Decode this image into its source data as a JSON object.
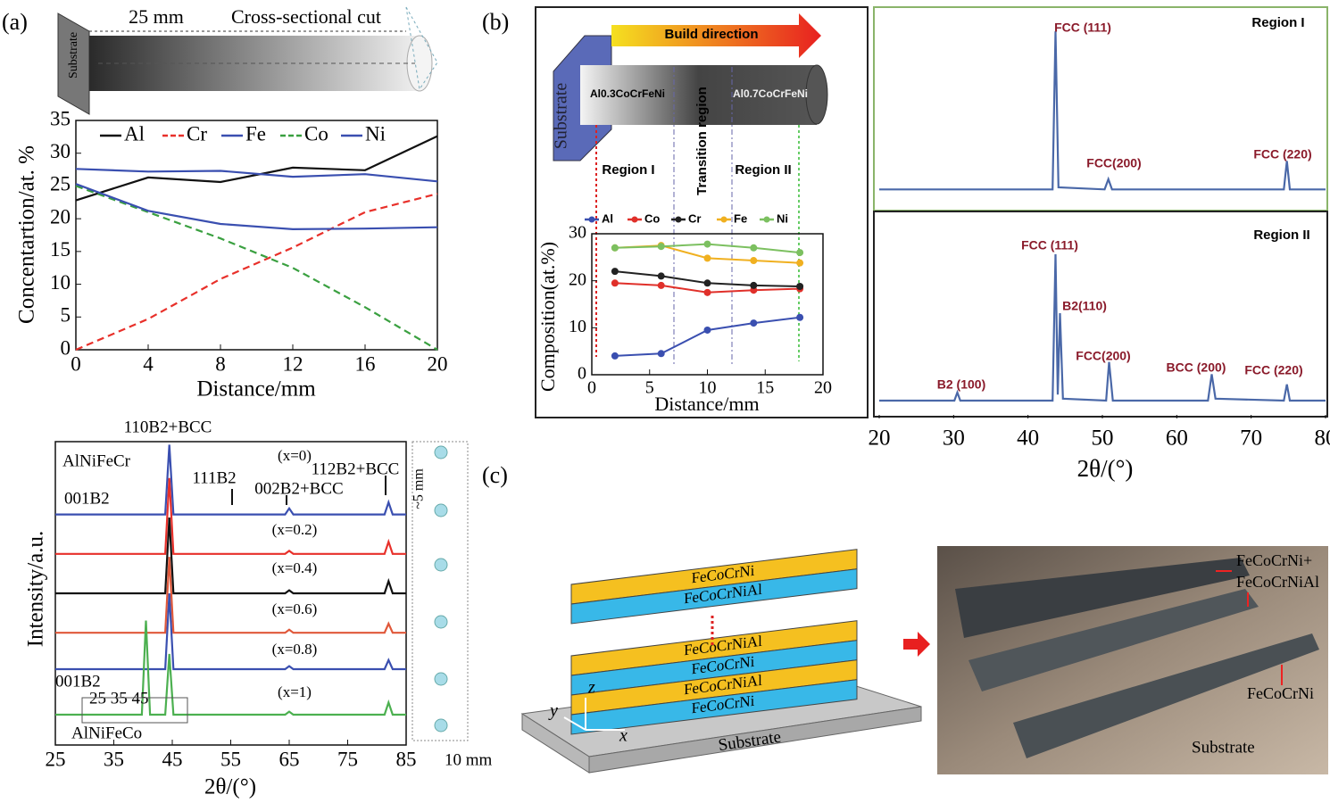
{
  "panel_labels": [
    "(a)",
    "(b)",
    "(c)"
  ],
  "schematic_a": {
    "length": "25 mm",
    "cut": "Cross-sectional cut",
    "substrate": "Substrate"
  },
  "schematic_b": {
    "build_direction": "Build direction",
    "substrate": "Substrate",
    "alloy_1": "Al0.3CoCrFeNi",
    "alloy_2": "Al0.7CoCrFeNi",
    "transition": "Transition region",
    "region_1": "Region I",
    "region_2": "Region II"
  },
  "diagram_c": {
    "layers_top": [
      "FeCoCrNi",
      "FeCoCrNiAl"
    ],
    "layers_bottom": [
      "FeCoCrNiAl",
      "FeCoCrNi",
      "FeCoCrNiAl",
      "FeCoCrNi"
    ],
    "axes": [
      "y",
      "z",
      "x"
    ],
    "substrate": "Substrate"
  },
  "photo_c": {
    "label_top": [
      "FeCoCrNi+",
      "FeCoCrNiAl"
    ],
    "label_mid": "FeCoCrNi",
    "substrate": "Substrate"
  },
  "chart_data": [
    {
      "type": "line",
      "x_label": "Distance/mm",
      "y_label": "Concentartion/at. %",
      "x": [
        0,
        4,
        8,
        12,
        16,
        20
      ],
      "xlim": [
        0,
        20
      ],
      "xticks": [
        0,
        4,
        8,
        12,
        16,
        20
      ],
      "ylim": [
        0,
        35
      ],
      "yticks": [
        0,
        5,
        10,
        15,
        20,
        25,
        30,
        35
      ],
      "series": [
        {
          "name": "Al",
          "color": "#111111",
          "dash": false,
          "values": [
            22.8,
            26.3,
            25.6,
            27.8,
            27.4,
            32.6
          ]
        },
        {
          "name": "Cr",
          "color": "#e8302a",
          "dash": true,
          "values": [
            0,
            4.7,
            10.8,
            15.6,
            21,
            23.8
          ]
        },
        {
          "name": "Fe",
          "color": "#3a4fb0",
          "dash": false,
          "values": [
            27.6,
            27.2,
            27.3,
            26.4,
            26.8,
            25.7
          ]
        },
        {
          "name": "Co",
          "color": "#3aa040",
          "dash": true,
          "values": [
            25,
            21,
            17,
            12.5,
            6.5,
            0
          ]
        },
        {
          "name": "Ni",
          "color": "#3a4fb0",
          "dash": false,
          "values": [
            25.3,
            21.2,
            19.2,
            18.4,
            18.5,
            18.7
          ]
        }
      ]
    },
    {
      "type": "line",
      "x_label": "2θ/(°)",
      "y_label": "Intensity/a.u.",
      "xlim": [
        25,
        85
      ],
      "xticks": [
        25,
        35,
        45,
        55,
        65,
        75,
        85
      ],
      "ylim": [
        0,
        100
      ],
      "annotations": [
        "110B2+BCC",
        "AlNiFeCr",
        "001B2",
        "111B2",
        "002B2+BCC",
        "112B2+BCC",
        "001B2",
        "25 35 45",
        "AlNiFeCo",
        "~5 mm",
        "10 mm"
      ],
      "series": [
        {
          "name": "(x=0)",
          "color": "#3a4fb0",
          "x": [
            25,
            43.8,
            44.5,
            45.2,
            64.3,
            65,
            65.7,
            81.3,
            82,
            82.7,
            85
          ],
          "values": [
            76,
            76,
            99,
            76,
            76,
            78,
            76,
            76,
            80,
            76,
            76
          ]
        },
        {
          "name": "(x=0.2)",
          "color": "#e8302a",
          "x": [
            25,
            43.8,
            44.5,
            45.2,
            64.3,
            65,
            65.7,
            81.3,
            82,
            82.7,
            85
          ],
          "values": [
            63,
            63,
            88,
            63,
            63,
            64,
            63,
            63,
            67,
            63,
            63
          ]
        },
        {
          "name": "(x=0.4)",
          "color": "#111111",
          "x": [
            25,
            43.8,
            44.5,
            45.2,
            64.3,
            65,
            65.7,
            81.3,
            82,
            82.7,
            85
          ],
          "values": [
            50,
            50,
            75,
            50,
            50,
            51,
            50,
            50,
            54,
            50,
            50
          ]
        },
        {
          "name": "(x=0.6)",
          "color": "#e0583a",
          "x": [
            25,
            43.8,
            44.5,
            45.2,
            64.3,
            65,
            65.7,
            81.3,
            82,
            82.7,
            85
          ],
          "values": [
            37,
            37,
            62,
            37,
            37,
            38,
            37,
            37,
            40,
            37,
            37
          ]
        },
        {
          "name": "(x=0.8)",
          "color": "#3a4fb0",
          "x": [
            25,
            43.8,
            44.5,
            45.2,
            64.3,
            65,
            65.7,
            81.3,
            82,
            82.7,
            85
          ],
          "values": [
            25,
            25,
            50,
            25,
            25,
            26,
            25,
            25,
            28,
            25,
            25
          ]
        },
        {
          "name": "(x=1)",
          "color": "#4cb050",
          "x": [
            25,
            39.8,
            40.5,
            41.2,
            43.8,
            44.5,
            45.2,
            64.3,
            65,
            65.7,
            81.3,
            82,
            82.7,
            85
          ],
          "values": [
            10,
            10,
            41,
            10,
            10,
            30,
            10,
            10,
            11,
            10,
            10,
            14,
            10,
            10
          ]
        }
      ]
    },
    {
      "type": "line",
      "x_label": "Distance/mm",
      "y_label": "Composition(at.%)",
      "markers": true,
      "x": [
        2,
        6,
        10,
        14,
        18
      ],
      "xlim": [
        0,
        20
      ],
      "xticks": [
        0,
        5,
        10,
        15,
        20
      ],
      "ylim": [
        0,
        30
      ],
      "yticks": [
        0,
        10,
        20,
        30
      ],
      "series": [
        {
          "name": "Al",
          "color": "#3a4fb0",
          "values": [
            4,
            4.5,
            9.5,
            11,
            12.2
          ]
        },
        {
          "name": "Co",
          "color": "#e0302a",
          "values": [
            19.5,
            19,
            17.5,
            18,
            18.3
          ]
        },
        {
          "name": "Cr",
          "color": "#222222",
          "values": [
            22,
            21,
            19.5,
            19,
            18.8
          ]
        },
        {
          "name": "Fe",
          "color": "#f0b020",
          "values": [
            27,
            27.5,
            24.8,
            24.3,
            23.8
          ]
        },
        {
          "name": "Ni",
          "color": "#7cc060",
          "values": [
            27,
            27.3,
            27.8,
            27,
            26
          ]
        }
      ]
    },
    {
      "type": "line",
      "title": "Region I",
      "xlim": [
        20,
        80
      ],
      "ylim": [
        0,
        100
      ],
      "annotations": [
        "FCC (111)",
        "FCC(200)",
        "FCC (220)"
      ],
      "series": [
        {
          "color": "#4a68a8",
          "x": [
            20,
            43.3,
            43.7,
            44.1,
            50.3,
            50.8,
            51.3,
            74.4,
            74.8,
            75.2,
            80
          ],
          "values": [
            10,
            10,
            88,
            11,
            10,
            15,
            10,
            10,
            24,
            10,
            10
          ]
        }
      ]
    },
    {
      "type": "line",
      "title": "Region II",
      "x_label": "2θ/(°)",
      "xlim": [
        20,
        80
      ],
      "xticks": [
        20,
        30,
        40,
        50,
        60,
        70,
        80
      ],
      "ylim": [
        0,
        100
      ],
      "annotations": [
        "FCC (111)",
        "B2(110)",
        "FCC(200)",
        "BCC (200)",
        "FCC (220)",
        "B2 (100)"
      ],
      "series": [
        {
          "color": "#4a68a8",
          "x": [
            20,
            30.1,
            30.5,
            30.9,
            43.3,
            43.7,
            44.0,
            44.3,
            44.7,
            50.5,
            50.9,
            51.4,
            64.2,
            64.7,
            65.2,
            74.4,
            74.8,
            75.2,
            80
          ],
          "values": [
            7,
            7,
            11,
            7,
            7,
            79,
            10,
            50,
            8,
            7,
            26,
            7,
            7,
            20,
            8,
            7,
            15,
            7,
            7
          ]
        }
      ]
    }
  ]
}
